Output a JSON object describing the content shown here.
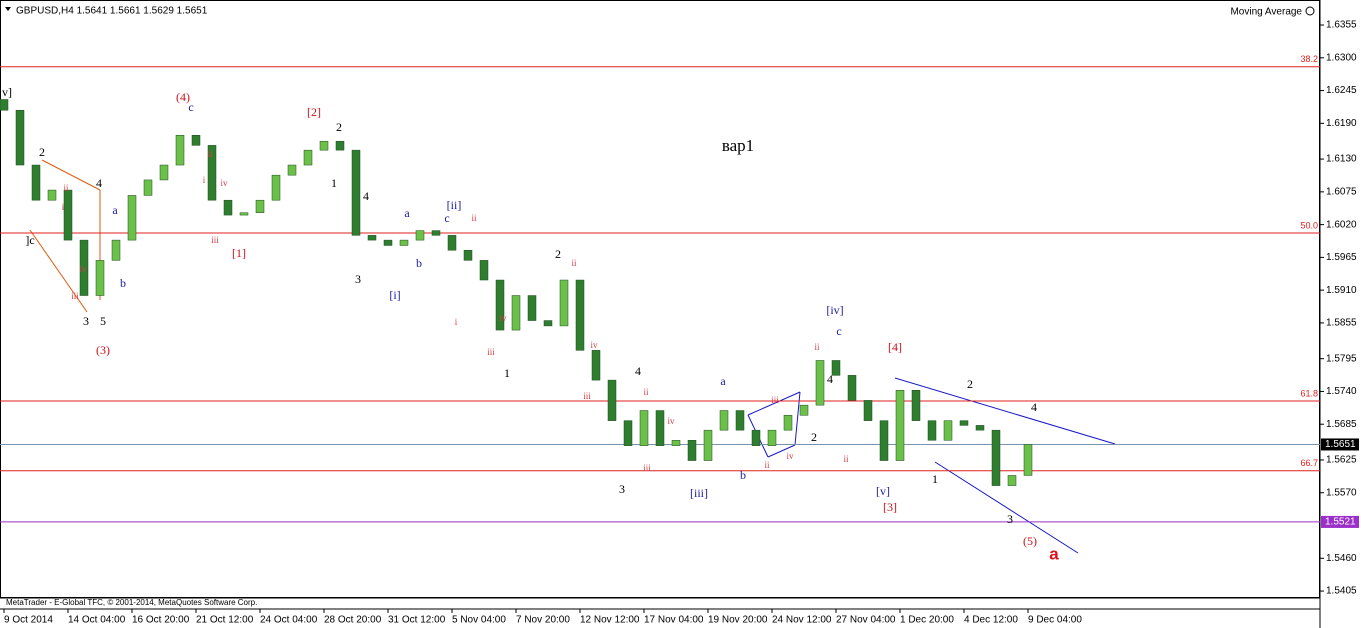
{
  "chart_data": {
    "type": "candlestick",
    "title": "GBPUSD,H4  1.5641 1.5661 1.5629 1.5651",
    "indicator": "Moving Average",
    "footer": "MetaTrader - E-Global TFC, © 2001-2014, MetaQuotes Software Corp.",
    "categories": [
      "9 Oct 2014",
      null,
      null,
      null,
      "14 Oct 04:00",
      null,
      null,
      null,
      "16 Oct 20:00",
      null,
      null,
      null,
      "21 Oct 12:00",
      null,
      null,
      null,
      "24 Oct 04:00",
      null,
      null,
      null,
      "28 Oct 20:00",
      null,
      null,
      null,
      "31 Oct 12:00",
      null,
      null,
      null,
      "5 Nov 04:00",
      null,
      null,
      null,
      "7 Nov 20:00",
      null,
      null,
      null,
      "12 Nov 12:00",
      null,
      null,
      null,
      "17 Nov 04:00",
      null,
      null,
      null,
      "19 Nov 20:00",
      null,
      null,
      null,
      "24 Nov 12:00",
      null,
      null,
      null,
      "27 Nov 04:00",
      null,
      null,
      null,
      "1 Dec 20:00",
      null,
      null,
      null,
      "4 Dec 12:00",
      null,
      null,
      null,
      "9 Dec 04:00"
    ],
    "open": [
      1.623,
      1.6212,
      1.612,
      1.6061,
      1.6078,
      1.5994,
      1.5901,
      1.596,
      1.5994,
      1.6069,
      1.6095,
      1.612,
      1.617,
      1.6153,
      1.6061,
      1.6036,
      1.604,
      1.6061,
      1.6103,
      1.612,
      1.6145,
      1.616,
      1.6145,
      1.6002,
      1.5994,
      1.5985,
      1.5994,
      1.601,
      1.6002,
      1.5977,
      1.596,
      1.5927,
      1.5843,
      1.5901,
      1.5859,
      1.585,
      1.5927,
      1.5809,
      1.5759,
      1.5691,
      1.5649,
      1.5708,
      1.5649,
      1.5658,
      1.5624,
      1.5675,
      1.5708,
      1.5675,
      1.5649,
      1.5675,
      1.57,
      1.5717,
      1.5792,
      1.5767,
      1.5725,
      1.5691,
      1.5624,
      1.5742,
      1.5691,
      1.5658,
      1.5691,
      1.5683,
      1.5675,
      1.5582,
      1.5599
    ],
    "close": [
      1.6212,
      1.612,
      1.6061,
      1.6078,
      1.5994,
      1.5901,
      1.596,
      1.5994,
      1.6069,
      1.6095,
      1.612,
      1.617,
      1.6153,
      1.6061,
      1.6036,
      1.604,
      1.6061,
      1.6103,
      1.612,
      1.6145,
      1.616,
      1.6145,
      1.6002,
      1.5994,
      1.5985,
      1.5994,
      1.601,
      1.6002,
      1.5977,
      1.596,
      1.5927,
      1.5843,
      1.5901,
      1.5859,
      1.585,
      1.5927,
      1.5809,
      1.5759,
      1.5691,
      1.5649,
      1.5708,
      1.5649,
      1.5658,
      1.5624,
      1.5675,
      1.5708,
      1.5675,
      1.5649,
      1.5675,
      1.57,
      1.5717,
      1.5792,
      1.5767,
      1.5725,
      1.5691,
      1.5624,
      1.5742,
      1.5691,
      1.5658,
      1.5691,
      1.5683,
      1.5675,
      1.5582,
      1.5599,
      1.5651
    ],
    "up_color": "#6cc04a",
    "down_color": "#2f7d2f",
    "ylim": [
      1.5395,
      1.6397
    ],
    "yticks": [
      1.6355,
      {
        "value": 1.63,
        "label": "1.6300"
      },
      1.6245,
      {
        "value": 1.619,
        "label": "1.6190"
      },
      {
        "value": 1.613,
        "label": "1.6130"
      },
      1.6075,
      {
        "value": 1.602,
        "label": "1.6020"
      },
      1.5965,
      {
        "value": 1.591,
        "label": "1.5910"
      },
      1.5855,
      1.5795,
      {
        "value": 1.574,
        "label": "1.5740"
      },
      1.5685,
      1.5625,
      {
        "value": 1.557,
        "label": "1.5570"
      },
      {
        "value": 1.546,
        "label": "1.5460"
      },
      1.5405
    ],
    "levels": [
      {
        "label": "38.2",
        "value": 1.6285,
        "color": "#e0201c"
      },
      {
        "label": "50.0",
        "value": 1.6006,
        "color": "#e0201c"
      },
      {
        "label": "61.8",
        "value": 1.5724,
        "color": "#e0201c"
      },
      {
        "label": "66.7",
        "value": 1.5607,
        "color": "#e0201c"
      }
    ],
    "price_lines": [
      {
        "value": 1.5651,
        "color": "#7a93b0",
        "box": "#000000"
      },
      {
        "value": 1.5521,
        "color": "#9b30c8",
        "box": "#9b30c8"
      }
    ],
    "annotation_groups": [
      {
        "color": "#000000",
        "texts": [
          "2",
          "4",
          "3",
          "5",
          "2",
          "1",
          "4",
          "3",
          "1",
          "2",
          "4",
          "3",
          "2",
          "4",
          "2",
          "1",
          "3",
          "4",
          "]c",
          "v]"
        ]
      },
      {
        "color": "#d0101a",
        "texts": [
          "(4)",
          "[2]",
          "[1]",
          "(3)",
          "[4]",
          "[3]",
          "(5)"
        ]
      },
      {
        "color": "#1a1aa0",
        "texts": [
          "c",
          "a",
          "b",
          "a",
          "b",
          "c",
          "[ii]",
          "[i]",
          "[iii]",
          "a",
          "b",
          "[iv]",
          "c",
          "[v]"
        ]
      },
      {
        "color": "#d0404a",
        "texts": [
          "iii",
          "iv",
          "i",
          "ii",
          "i",
          "ii",
          "iv",
          "iii",
          "ii",
          "i",
          "iii",
          "iv",
          "ii",
          "iv",
          "iii",
          "ii",
          "iii",
          "iv",
          "ii",
          "iv",
          "iii",
          "ii",
          "ii"
        ]
      }
    ],
    "wave_label": {
      "text": "a",
      "color": "#e0101a"
    },
    "note": "вар1"
  }
}
